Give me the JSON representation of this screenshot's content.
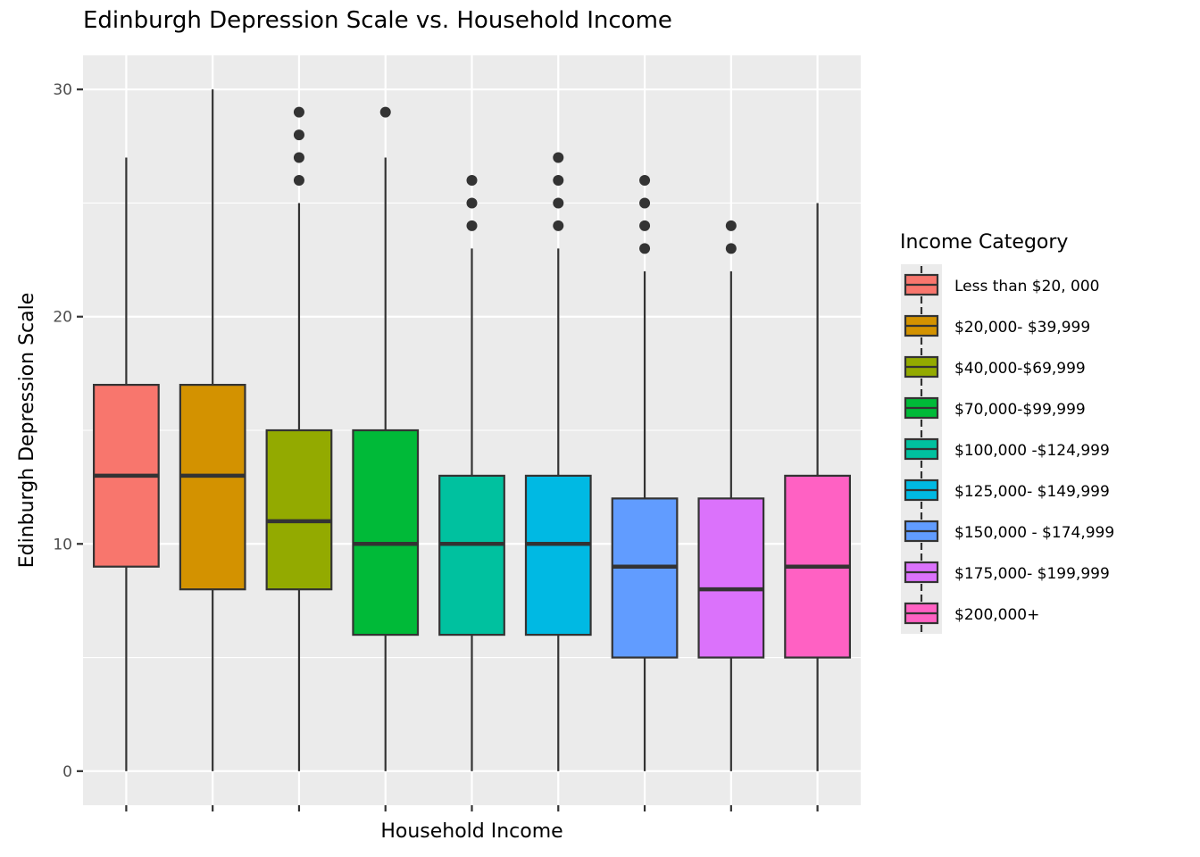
{
  "chart_data": {
    "type": "boxplot",
    "title": "Edinburgh Depression Scale vs. Household Income",
    "xlabel": "Household Income",
    "ylabel": "Edinburgh Depression Scale",
    "ylim": [
      -1.5,
      31.5
    ],
    "yticks": [
      0,
      10,
      20,
      30
    ],
    "legend_title": "Income Category",
    "legend_position": "right",
    "grid": true,
    "series": [
      {
        "name": "Less than $20, 000",
        "color": "#F8766D",
        "min": 0,
        "q1": 9,
        "median": 13,
        "q3": 17,
        "max": 27,
        "outliers": []
      },
      {
        "name": "$20,000- $39,999",
        "color": "#D39200",
        "min": 0,
        "q1": 8,
        "median": 13,
        "q3": 17,
        "max": 30,
        "outliers": []
      },
      {
        "name": "$40,000-$69,999",
        "color": "#93AA00",
        "min": 0,
        "q1": 8,
        "median": 11,
        "q3": 15,
        "max": 25,
        "outliers": [
          26,
          27,
          28,
          29
        ]
      },
      {
        "name": "$70,000-$99,999",
        "color": "#00BA38",
        "min": 0,
        "q1": 6,
        "median": 10,
        "q3": 15,
        "max": 27,
        "outliers": [
          29
        ]
      },
      {
        "name": "$100,000 -$124,999",
        "color": "#00C19F",
        "min": 0,
        "q1": 6,
        "median": 10,
        "q3": 13,
        "max": 23,
        "outliers": [
          24,
          25,
          26
        ]
      },
      {
        "name": "$125,000- $149,999",
        "color": "#00B9E3",
        "min": 0,
        "q1": 6,
        "median": 10,
        "q3": 13,
        "max": 23,
        "outliers": [
          24,
          25,
          26,
          27
        ]
      },
      {
        "name": "$150,000 - $174,999",
        "color": "#619CFF",
        "min": 0,
        "q1": 5,
        "median": 9,
        "q3": 12,
        "max": 22,
        "outliers": [
          23,
          24,
          25,
          26
        ]
      },
      {
        "name": "$175,000- $199,999",
        "color": "#DB72FB",
        "min": 0,
        "q1": 5,
        "median": 8,
        "q3": 12,
        "max": 22,
        "outliers": [
          23,
          24
        ]
      },
      {
        "name": "$200,000+",
        "color": "#FF61C3",
        "min": 0,
        "q1": 5,
        "median": 9,
        "q3": 13,
        "max": 25,
        "outliers": []
      }
    ]
  },
  "colors": {
    "panel_background": "#EBEBEB",
    "grid_major": "#FFFFFF",
    "box_outline": "#333333"
  }
}
